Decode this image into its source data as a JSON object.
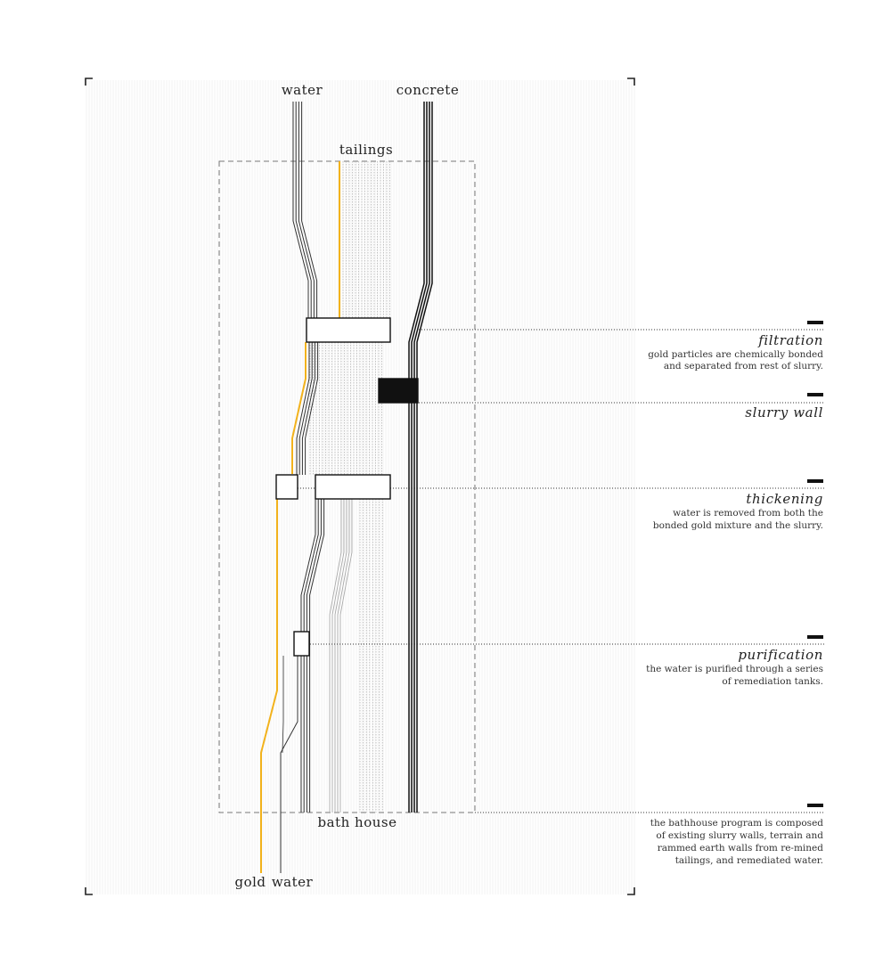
{
  "labels": {
    "water_in": "water",
    "concrete": "concrete",
    "tailings": "tailings",
    "bath_house": "bath house",
    "gold_out": "gold",
    "water_out": "water"
  },
  "steps": [
    {
      "title": "filtration",
      "desc": [
        "gold particles are chemically bonded",
        "and separated from rest of slurry."
      ]
    },
    {
      "title": "slurry wall",
      "desc": []
    },
    {
      "title": "thickening",
      "desc": [
        "water is removed from both the",
        "bonded gold mixture and the slurry."
      ]
    },
    {
      "title": "purification",
      "desc": [
        "the water is purified through a series",
        "of remediation tanks."
      ]
    },
    {
      "title": "",
      "desc": [
        "the bathhouse program is composed",
        "of existing slurry walls, terrain and",
        "rammed earth walls from re-mined",
        "tailings, and remediated water."
      ]
    }
  ],
  "colors": {
    "gold": "#f2b21c",
    "line": "#333333",
    "tailings": "#aaaaaa",
    "concrete": "#111111",
    "wall": "#111111"
  }
}
